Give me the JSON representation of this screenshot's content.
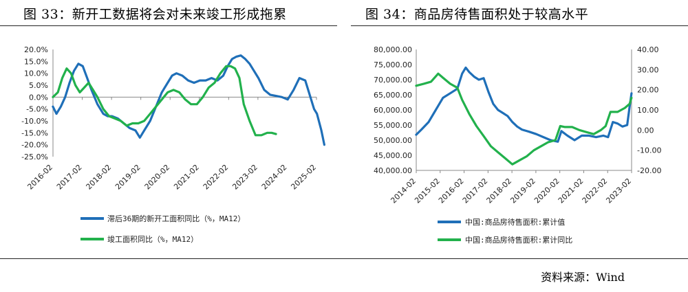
{
  "titles": {
    "left": "图 33：新开工数据将会对未来竣工形成拖累",
    "right": "图 34：商品房待售面积处于较高水平"
  },
  "source": "资料来源：Wind",
  "colors": {
    "blue": "#1F6FB8",
    "green": "#22B14C"
  },
  "chart_data": [
    {
      "type": "line",
      "x_tick_labels": [
        "2016-02",
        "2017-02",
        "2018-02",
        "2019-02",
        "2020-02",
        "2021-02",
        "2022-02",
        "2023-02",
        "2024-02",
        "2025-02"
      ],
      "y_tick_labels": [
        "20.0%",
        "15.0%",
        "10.0%",
        "5.0%",
        "0.0%",
        "-5.0%",
        "-10.0%",
        "-15.0%",
        "-20.0%",
        "-25.0%"
      ],
      "ylim": [
        -25,
        20
      ],
      "xlim": [
        2016.083,
        2025.083
      ],
      "series": [
        {
          "name": "滞后36期的新开工面积同比（%，MA12）",
          "color": "#1F6FB8",
          "x": [
            2016.08,
            2016.2,
            2016.35,
            2016.5,
            2016.65,
            2016.8,
            2016.95,
            2017.1,
            2017.25,
            2017.4,
            2017.6,
            2017.8,
            2017.95,
            2018.1,
            2018.3,
            2018.5,
            2018.7,
            2018.9,
            2019.05,
            2019.2,
            2019.4,
            2019.6,
            2019.8,
            2020.0,
            2020.15,
            2020.3,
            2020.5,
            2020.7,
            2020.9,
            2021.1,
            2021.3,
            2021.5,
            2021.7,
            2021.9,
            2022.05,
            2022.2,
            2022.35,
            2022.5,
            2022.65,
            2022.8,
            2022.95,
            2023.1,
            2023.3,
            2023.5,
            2023.7,
            2023.9,
            2024.1,
            2024.3,
            2024.5,
            2024.7,
            2024.85,
            2025.0,
            2025.1,
            2025.25,
            2025.35
          ],
          "y": [
            -4,
            -7,
            -4,
            0,
            6,
            11,
            14,
            13,
            8,
            3,
            -3,
            -7,
            -8,
            -8,
            -9,
            -11,
            -13,
            -14,
            -17,
            -14,
            -10,
            -4,
            2,
            6,
            9,
            10,
            9,
            7,
            6,
            7,
            7,
            8,
            7,
            9,
            13,
            16,
            17,
            17.5,
            16,
            14,
            11,
            8,
            3,
            1,
            0.5,
            0,
            -1,
            3,
            8,
            7,
            1,
            -5,
            -7,
            -14,
            -20
          ]
        },
        {
          "name": "竣工面积同比（%，MA12）",
          "color": "#22B14C",
          "x": [
            2016.08,
            2016.25,
            2016.4,
            2016.55,
            2016.7,
            2016.85,
            2017.0,
            2017.15,
            2017.3,
            2017.45,
            2017.6,
            2017.8,
            2018.0,
            2018.2,
            2018.4,
            2018.6,
            2018.8,
            2019.0,
            2019.2,
            2019.4,
            2019.6,
            2019.8,
            2020.0,
            2020.2,
            2020.4,
            2020.6,
            2020.8,
            2021.0,
            2021.2,
            2021.4,
            2021.6,
            2021.8,
            2022.0,
            2022.15,
            2022.3,
            2022.45,
            2022.6,
            2022.8,
            2023.0,
            2023.2,
            2023.4,
            2023.55,
            2023.7
          ],
          "y": [
            0,
            2,
            8,
            12,
            10,
            5,
            2,
            4,
            6,
            3,
            0,
            -5,
            -8,
            -9,
            -10,
            -12,
            -11,
            -11,
            -10,
            -7,
            -4,
            -1,
            2,
            3,
            2,
            -1,
            -3,
            -3,
            0,
            4,
            6,
            10,
            13,
            13,
            12,
            8,
            -3,
            -10,
            -16,
            -16,
            -15,
            -15,
            -15.5
          ]
        }
      ]
    },
    {
      "type": "line",
      "x_tick_labels": [
        "2014-02",
        "2015-02",
        "2016-02",
        "2017-02",
        "2018-02",
        "2019-02",
        "2020-02",
        "2021-02",
        "2022-02",
        "2023-02"
      ],
      "y_left_tick_labels": [
        "80,000.00",
        "75,000.00",
        "70,000.00",
        "65,000.00",
        "60,000.00",
        "55,000.00",
        "50,000.00",
        "45,000.00",
        "40,000.00"
      ],
      "y_right_tick_labels": [
        "40.00",
        "30.00",
        "20.00",
        "10.00",
        "0.00",
        "-10.00",
        "-20.00"
      ],
      "ylim_left": [
        40000,
        80000
      ],
      "ylim_right": [
        -20,
        40
      ],
      "xlim": [
        2014.083,
        2023.083
      ],
      "series": [
        {
          "name": "中国:商品房待售面积:累计值",
          "axis": "left",
          "color": "#1F6FB8",
          "x": [
            2014.08,
            2014.3,
            2014.6,
            2014.9,
            2015.2,
            2015.5,
            2015.8,
            2016.0,
            2016.15,
            2016.3,
            2016.5,
            2016.7,
            2016.9,
            2017.1,
            2017.3,
            2017.5,
            2017.7,
            2017.9,
            2018.1,
            2018.3,
            2018.5,
            2018.8,
            2019.1,
            2019.4,
            2019.7,
            2020.0,
            2020.15,
            2020.4,
            2020.7,
            2021.0,
            2021.3,
            2021.6,
            2021.9,
            2022.1,
            2022.3,
            2022.5,
            2022.7,
            2022.9,
            2023.0,
            2023.08
          ],
          "y": [
            51800,
            53500,
            56000,
            60000,
            64000,
            65500,
            67000,
            72000,
            74000,
            72500,
            71000,
            70000,
            70500,
            66000,
            62000,
            60000,
            59000,
            58000,
            56000,
            54500,
            53500,
            52800,
            52000,
            51000,
            50000,
            49500,
            53000,
            51500,
            50000,
            51500,
            51500,
            51000,
            51500,
            51000,
            56000,
            55500,
            54500,
            55000,
            61000,
            65500
          ]
        },
        {
          "name": "中国:商品房待售面积:累计同比",
          "axis": "right",
          "color": "#22B14C",
          "x": [
            2014.08,
            2014.4,
            2014.7,
            2015.0,
            2015.2,
            2015.5,
            2015.8,
            2016.0,
            2016.3,
            2016.6,
            2016.9,
            2017.2,
            2017.5,
            2017.8,
            2018.1,
            2018.4,
            2018.7,
            2019.0,
            2019.3,
            2019.6,
            2019.9,
            2020.1,
            2020.3,
            2020.6,
            2020.9,
            2021.2,
            2021.5,
            2021.8,
            2022.0,
            2022.2,
            2022.5,
            2022.8,
            2023.0,
            2023.08
          ],
          "y": [
            22,
            23,
            24,
            28,
            26,
            23,
            21,
            15,
            8,
            2,
            -3,
            -8,
            -11,
            -14,
            -17,
            -15,
            -13,
            -10,
            -8,
            -6,
            -5,
            2,
            1.5,
            1.5,
            0,
            -1,
            -2,
            0,
            2,
            9,
            9,
            11,
            13,
            16
          ]
        }
      ]
    }
  ]
}
